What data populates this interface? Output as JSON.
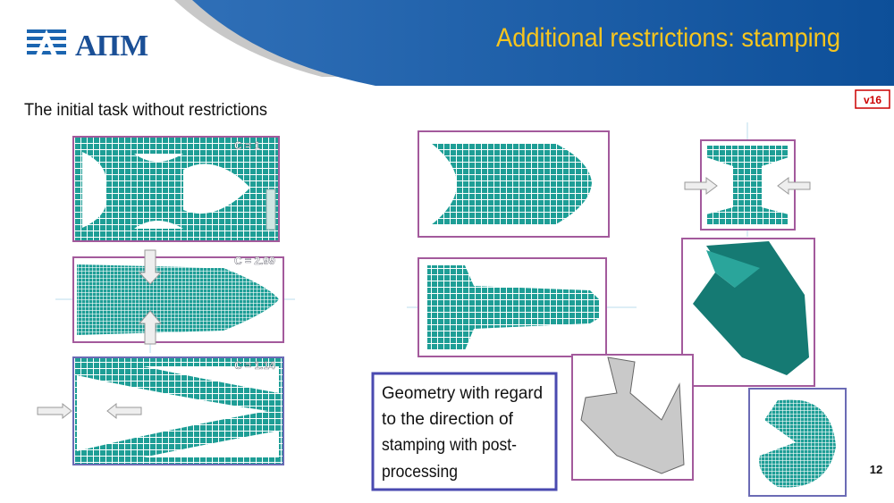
{
  "logo": {
    "text": "АПМ"
  },
  "header": {
    "title": "Additional restrictions: stamping",
    "subtitle": "The initial task without restrictions",
    "version": "v16"
  },
  "left_panels": [
    {
      "label": "C = 1"
    },
    {
      "label": "C = 2.99"
    },
    {
      "label": "C = 1.14"
    }
  ],
  "caption": {
    "lines": [
      "Geometry with regard",
      "to the direction of",
      "stamping with post-",
      "processing"
    ]
  },
  "page_number": "12"
}
